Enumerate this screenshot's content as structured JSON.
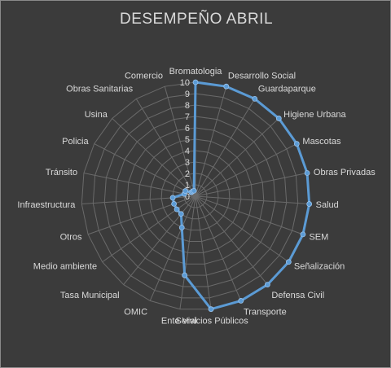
{
  "chart_data": {
    "type": "radar",
    "title": "DESEMPEÑO ABRIL",
    "rmin": 0,
    "rmax": 10,
    "ticks": [
      "0",
      "1",
      "2",
      "3",
      "4",
      "5",
      "6",
      "7",
      "8",
      "9",
      "10"
    ],
    "grid": true,
    "legend": "none",
    "categories": [
      "Bromatologia",
      "Desarrollo Social",
      "Guardaparque",
      "Higiene Urbana",
      "Mascotas",
      "Obras Privadas",
      "Salud",
      "SEM",
      "Señalización",
      "Defensa Civil",
      "Transporte",
      "Servicios Públicos",
      "Ente Vial",
      "OMIC",
      "Tasa Municipal",
      "Medio ambiente",
      "Otros",
      "Infraestructura",
      "Tránsito",
      "Policia",
      "Usina",
      "Obras Sanitarias",
      "Comercio"
    ],
    "series": [
      {
        "values": [
          10,
          10,
          10,
          10,
          10,
          10,
          10,
          10,
          10,
          10,
          10,
          10,
          7,
          3,
          2,
          2,
          2,
          2,
          1,
          1,
          0.5,
          0.5,
          0.5
        ],
        "color": "#5b9bd5"
      }
    ]
  }
}
